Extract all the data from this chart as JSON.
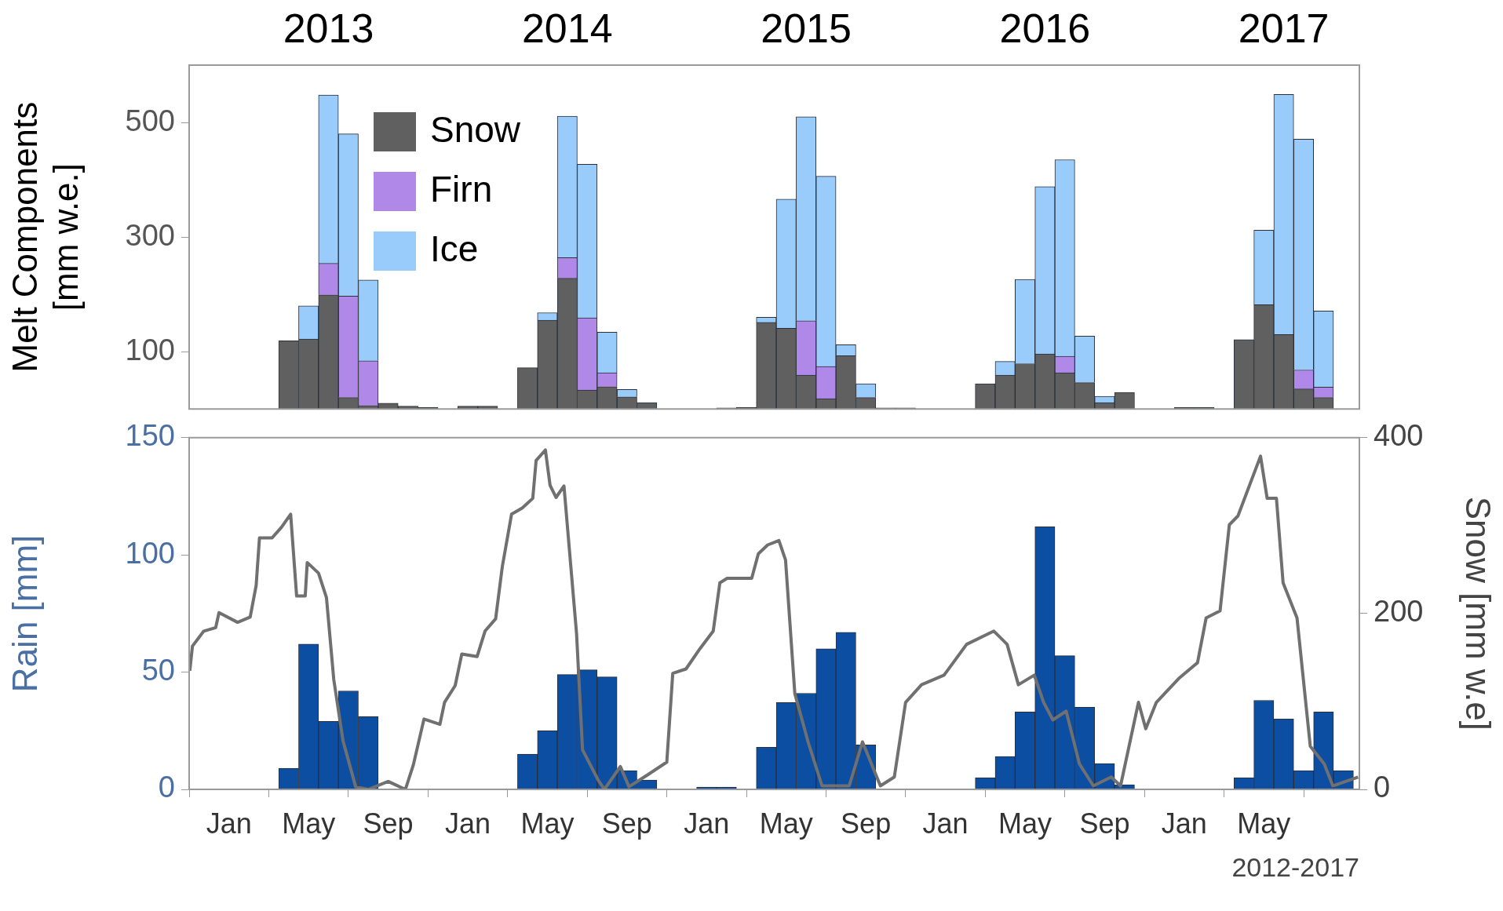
{
  "chart_data": [
    {
      "type": "bar",
      "stacked": true,
      "legend": "top left",
      "grid": false,
      "tick_labels": "y",
      "ylabel": "Melt Components\n[mm w.e.]",
      "ylim": [
        0,
        600
      ],
      "yticks": [
        100,
        300,
        500
      ],
      "xlim": [
        "2012-11-01",
        "2017-09-25"
      ],
      "x2lim": [
        "2012-11-01",
        "2017-09-25"
      ],
      "x2ticks": [
        {
          "value": "2013-06",
          "label": "2013"
        },
        {
          "value": "2014-06",
          "label": "2014"
        },
        {
          "value": "2015-06",
          "label": "2015"
        },
        {
          "value": "2016-06",
          "label": "2016"
        },
        {
          "value": "2017-06",
          "label": "2017"
        }
      ],
      "x": [
        "2012-11",
        "2012-12",
        "2013-01",
        "2013-02",
        "2013-03",
        "2013-04",
        "2013-05",
        "2013-06",
        "2013-07",
        "2013-08",
        "2013-09",
        "2013-10",
        "2013-11",
        "2013-12",
        "2014-01",
        "2014-02",
        "2014-03",
        "2014-04",
        "2014-05",
        "2014-06",
        "2014-07",
        "2014-08",
        "2014-09",
        "2014-10",
        "2014-11",
        "2014-12",
        "2015-01",
        "2015-02",
        "2015-03",
        "2015-04",
        "2015-05",
        "2015-06",
        "2015-07",
        "2015-08",
        "2015-09",
        "2015-10",
        "2015-11",
        "2015-12",
        "2016-01",
        "2016-02",
        "2016-03",
        "2016-04",
        "2016-05",
        "2016-06",
        "2016-07",
        "2016-08",
        "2016-09",
        "2016-10",
        "2016-11",
        "2016-12",
        "2017-01",
        "2017-02",
        "2017-03",
        "2017-04",
        "2017-05",
        "2017-06",
        "2017-07",
        "2017-08",
        "2017-09"
      ],
      "series": [
        {
          "name": "Snow",
          "color": "#606060",
          "values": [
            0,
            0,
            0,
            0,
            0,
            119,
            122,
            199,
            20,
            6,
            10,
            5,
            3,
            0,
            5,
            5,
            0,
            72,
            155,
            228,
            33,
            39,
            21,
            11,
            0,
            0,
            0,
            2,
            3,
            151,
            141,
            59,
            18,
            93,
            20,
            2,
            2,
            0,
            0,
            0,
            44,
            59,
            79,
            96,
            63,
            46,
            11,
            29,
            0,
            0,
            3,
            3,
            0,
            121,
            182,
            130,
            35,
            20,
            0
          ]
        },
        {
          "name": "Firn",
          "color": "#b088e8",
          "values": [
            0,
            0,
            0,
            0,
            0,
            0,
            0,
            55,
            177,
            78,
            0,
            0,
            0,
            0,
            0,
            0,
            0,
            0,
            0,
            36,
            126,
            24,
            0,
            0,
            0,
            0,
            0,
            0,
            0,
            0,
            0,
            95,
            56,
            0,
            0,
            0,
            0,
            0,
            0,
            0,
            0,
            0,
            0,
            0,
            29,
            0,
            0,
            0,
            0,
            0,
            0,
            0,
            0,
            0,
            0,
            0,
            33,
            18,
            0
          ]
        },
        {
          "name": "Ice",
          "color": "#99ccfa",
          "values": [
            0,
            0,
            0,
            0,
            0,
            0,
            58,
            294,
            283,
            141,
            0,
            0,
            0,
            0,
            0,
            0,
            0,
            0,
            13,
            247,
            268,
            71,
            13,
            0,
            0,
            0,
            0,
            0,
            0,
            9,
            225,
            356,
            332,
            19,
            24,
            0,
            0,
            0,
            0,
            0,
            0,
            24,
            147,
            292,
            343,
            81,
            11,
            0,
            0,
            0,
            0,
            0,
            0,
            0,
            130,
            419,
            403,
            133,
            0
          ]
        }
      ]
    },
    {
      "type": "bar",
      "grid": false,
      "xlabel": "2012-2017",
      "ylabel": "Rain [mm]",
      "y2label": "Snow [mm w.e]",
      "ylim": [
        0,
        150
      ],
      "yticks": [
        0,
        50,
        100,
        150
      ],
      "y2lim": [
        0,
        400
      ],
      "y2ticks": [
        0,
        200,
        400
      ],
      "xlim": [
        "2012-11-01",
        "2017-09-25"
      ],
      "xticks": [
        {
          "value": "2013-01",
          "label": "Jan"
        },
        {
          "value": "2013-05",
          "label": "May"
        },
        {
          "value": "2013-09",
          "label": "Sep"
        },
        {
          "value": "2014-01",
          "label": "Jan"
        },
        {
          "value": "2014-05",
          "label": "May"
        },
        {
          "value": "2014-09",
          "label": "Sep"
        },
        {
          "value": "2015-01",
          "label": "Jan"
        },
        {
          "value": "2015-05",
          "label": "May"
        },
        {
          "value": "2015-09",
          "label": "Sep"
        },
        {
          "value": "2016-01",
          "label": "Jan"
        },
        {
          "value": "2016-05",
          "label": "May"
        },
        {
          "value": "2016-09",
          "label": "Sep"
        },
        {
          "value": "2017-01",
          "label": "Jan"
        },
        {
          "value": "2017-05",
          "label": "May"
        }
      ],
      "x": [
        "2012-11",
        "2012-12",
        "2013-01",
        "2013-02",
        "2013-03",
        "2013-04",
        "2013-05",
        "2013-06",
        "2013-07",
        "2013-08",
        "2013-09",
        "2013-10",
        "2013-11",
        "2013-12",
        "2014-01",
        "2014-02",
        "2014-03",
        "2014-04",
        "2014-05",
        "2014-06",
        "2014-07",
        "2014-08",
        "2014-09",
        "2014-10",
        "2014-11",
        "2014-12",
        "2015-01",
        "2015-02",
        "2015-03",
        "2015-04",
        "2015-05",
        "2015-06",
        "2015-07",
        "2015-08",
        "2015-09",
        "2015-10",
        "2015-11",
        "2015-12",
        "2016-01",
        "2016-02",
        "2016-03",
        "2016-04",
        "2016-05",
        "2016-06",
        "2016-07",
        "2016-08",
        "2016-09",
        "2016-10",
        "2016-11",
        "2016-12",
        "2017-01",
        "2017-02",
        "2017-03",
        "2017-04",
        "2017-05",
        "2017-06",
        "2017-07",
        "2017-08",
        "2017-09"
      ],
      "series": [
        {
          "color": "#0b4ea2",
          "values": [
            0,
            0,
            0,
            0,
            0,
            9,
            62,
            29,
            42,
            31,
            0,
            0,
            0,
            0,
            0,
            0,
            0,
            15,
            25,
            49,
            51,
            48,
            8,
            4,
            0,
            0,
            1,
            1,
            0,
            18,
            37,
            41,
            60,
            67,
            19,
            0,
            0,
            0,
            0,
            0,
            5,
            14,
            33,
            112,
            57,
            35,
            11,
            2,
            0,
            0,
            0,
            0,
            0,
            5,
            38,
            30,
            8,
            33,
            8
          ]
        },
        {
          "type": "line",
          "axis": "y2",
          "color": "#707070",
          "x": [
            "2012-11-02",
            "2012-11-06",
            "2012-11-23",
            "2012-12-11",
            "2012-12-16",
            "2013-01-14",
            "2013-02-03",
            "2013-02-12",
            "2013-02-17",
            "2013-03-06",
            "2013-03-20",
            "2013-04-04",
            "2013-04-13",
            "2013-04-26",
            "2013-04-29",
            "2013-05-16",
            "2013-05-28",
            "2013-06-09",
            "2013-06-23",
            "2013-07-12",
            "2013-08-01",
            "2013-09-01",
            "2013-09-27",
            "2013-10-09",
            "2013-10-25",
            "2013-11-19",
            "2013-11-26",
            "2013-12-12",
            "2013-12-22",
            "2014-01-15",
            "2014-01-27",
            "2014-02-13",
            "2014-02-23",
            "2014-03-07",
            "2014-03-23",
            "2014-04-09",
            "2014-04-14",
            "2014-04-28",
            "2014-05-05",
            "2014-05-14",
            "2014-05-26",
            "2014-06-15",
            "2014-06-24",
            "2014-07-18",
            "2014-07-27",
            "2014-08-21",
            "2014-09-04",
            "2014-10-03",
            "2014-11-01",
            "2014-11-10",
            "2014-11-30",
            "2014-12-21",
            "2015-01-11",
            "2015-01-21",
            "2015-02-02",
            "2015-03-09",
            "2015-03-19",
            "2015-04-03",
            "2015-04-20",
            "2015-04-30",
            "2015-05-14",
            "2015-06-04",
            "2015-06-25",
            "2015-08-06",
            "2015-08-26",
            "2015-09-23",
            "2015-10-14",
            "2015-11-01",
            "2015-11-25",
            "2015-12-29",
            "2016-02-03",
            "2016-03-14",
            "2016-04-04",
            "2016-04-21",
            "2016-05-15",
            "2016-05-29",
            "2016-06-13",
            "2016-07-03",
            "2016-07-23",
            "2016-08-14",
            "2016-09-11",
            "2016-09-25",
            "2016-10-22",
            "2016-11-03",
            "2016-11-19",
            "2016-12-24",
            "2017-01-21",
            "2017-02-04",
            "2017-02-25",
            "2017-03-09",
            "2017-03-22",
            "2017-04-26",
            "2017-05-06",
            "2017-05-20",
            "2017-05-30",
            "2017-06-21",
            "2017-07-11",
            "2017-08-02",
            "2017-08-15",
            "2017-09-23"
          ],
          "values": [
            135,
            163,
            180,
            184,
            201,
            190,
            196,
            232,
            286,
            286,
            298,
            313,
            220,
            220,
            258,
            246,
            218,
            125,
            55,
            3,
            0,
            9,
            0,
            28,
            80,
            74,
            99,
            118,
            154,
            151,
            180,
            194,
            253,
            313,
            320,
            331,
            374,
            386,
            346,
            332,
            345,
            177,
            45,
            10,
            0,
            26,
            3,
            17,
            31,
            132,
            137,
            160,
            180,
            235,
            240,
            240,
            268,
            278,
            283,
            261,
            109,
            54,
            4,
            4,
            54,
            4,
            14,
            99,
            119,
            130,
            165,
            180,
            165,
            119,
            130,
            99,
            79,
            89,
            29,
            4,
            14,
            4,
            99,
            69,
            99,
            127,
            144,
            195,
            203,
            301,
            311,
            379,
            331,
            331,
            235,
            195,
            49,
            29,
            4,
            14
          ]
        }
      ]
    }
  ]
}
